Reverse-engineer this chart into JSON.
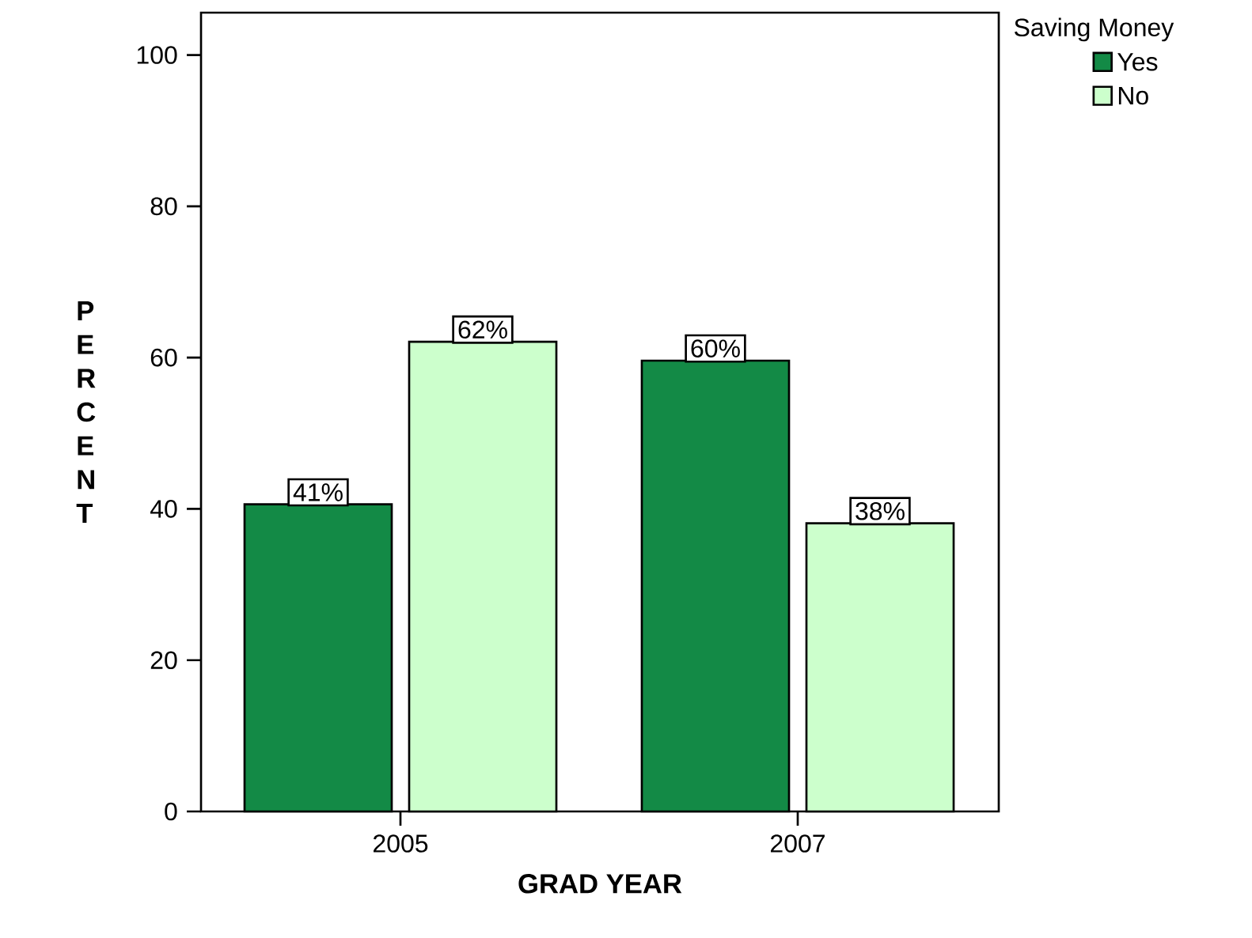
{
  "chart_data": {
    "type": "bar",
    "xlabel": "GRAD YEAR",
    "ylabel": "PERCENT",
    "legend_title": "Saving Money",
    "categories": [
      "2005",
      "2007"
    ],
    "series": [
      {
        "name": "Yes",
        "color": "#138a46",
        "values": [
          40.6,
          59.6
        ],
        "value_labels": [
          "41%",
          "60%"
        ]
      },
      {
        "name": "No",
        "color": "#ccffcc",
        "values": [
          62.1,
          38.1
        ],
        "value_labels": [
          "62%",
          "38%"
        ]
      }
    ],
    "ylim": [
      0,
      105.6
    ],
    "yticks": [
      0,
      20,
      40,
      60,
      80,
      100
    ],
    "legend": "top right"
  }
}
